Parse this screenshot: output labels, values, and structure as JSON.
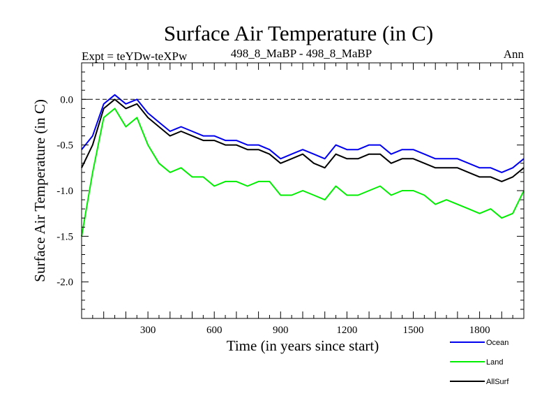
{
  "chart_data": {
    "type": "line",
    "title": "Surface Air Temperature (in C)",
    "subtitle_left": "Expt = teYDw-teXPw",
    "subtitle_center": "498_8_MaBP - 498_8_MaBP",
    "subtitle_right": "Ann",
    "xlabel": "Time (in years since start)",
    "ylabel": "Surface Air Temperature (in C)",
    "xlim": [
      0,
      2000
    ],
    "ylim": [
      -2.4,
      0.4
    ],
    "x_ticks": [
      300,
      600,
      900,
      1200,
      1500,
      1800
    ],
    "x_tick_labels": [
      "300",
      "600",
      "900",
      "1200",
      "1500",
      "1800"
    ],
    "y_ticks": [
      0.0,
      -0.5,
      -1.0,
      -1.5,
      -2.0
    ],
    "y_tick_labels": [
      "0.0",
      "-0.5",
      "-1.0",
      "-1.5",
      "-2.0"
    ],
    "zero_line": "dashed",
    "legend_position": "bottom-right, below plot",
    "series": [
      {
        "name": "Land",
        "color": "#00ee00",
        "x": [
          0,
          50,
          100,
          150,
          200,
          250,
          300,
          350,
          400,
          450,
          500,
          550,
          600,
          650,
          700,
          750,
          800,
          850,
          900,
          950,
          1000,
          1050,
          1100,
          1150,
          1200,
          1250,
          1300,
          1350,
          1400,
          1450,
          1500,
          1550,
          1600,
          1650,
          1700,
          1750,
          1800,
          1850,
          1900,
          1950,
          2000
        ],
        "values": [
          -1.5,
          -0.8,
          -0.2,
          -0.1,
          -0.3,
          -0.2,
          -0.5,
          -0.7,
          -0.8,
          -0.75,
          -0.85,
          -0.85,
          -0.95,
          -0.9,
          -0.9,
          -0.95,
          -0.9,
          -0.9,
          -1.05,
          -1.05,
          -1.0,
          -1.05,
          -1.1,
          -0.95,
          -1.05,
          -1.05,
          -1.0,
          -0.95,
          -1.05,
          -1.0,
          -1.0,
          -1.05,
          -1.15,
          -1.1,
          -1.15,
          -1.2,
          -1.25,
          -1.2,
          -1.3,
          -1.25,
          -1.0
        ]
      },
      {
        "name": "AllSurf",
        "color": "#000000",
        "x": [
          0,
          50,
          100,
          150,
          200,
          250,
          300,
          350,
          400,
          450,
          500,
          550,
          600,
          650,
          700,
          750,
          800,
          850,
          900,
          950,
          1000,
          1050,
          1100,
          1150,
          1200,
          1250,
          1300,
          1350,
          1400,
          1450,
          1500,
          1550,
          1600,
          1650,
          1700,
          1750,
          1800,
          1850,
          1900,
          1950,
          2000
        ],
        "values": [
          -0.75,
          -0.5,
          -0.1,
          0.0,
          -0.1,
          -0.05,
          -0.2,
          -0.3,
          -0.4,
          -0.35,
          -0.4,
          -0.45,
          -0.45,
          -0.5,
          -0.5,
          -0.55,
          -0.55,
          -0.6,
          -0.7,
          -0.65,
          -0.6,
          -0.7,
          -0.75,
          -0.6,
          -0.65,
          -0.65,
          -0.6,
          -0.6,
          -0.7,
          -0.65,
          -0.65,
          -0.7,
          -0.75,
          -0.75,
          -0.75,
          -0.8,
          -0.85,
          -0.85,
          -0.9,
          -0.85,
          -0.75
        ]
      },
      {
        "name": "Ocean",
        "color": "#0000ee",
        "x": [
          0,
          50,
          100,
          150,
          200,
          250,
          300,
          350,
          400,
          450,
          500,
          550,
          600,
          650,
          700,
          750,
          800,
          850,
          900,
          950,
          1000,
          1050,
          1100,
          1150,
          1200,
          1250,
          1300,
          1350,
          1400,
          1450,
          1500,
          1550,
          1600,
          1650,
          1700,
          1750,
          1800,
          1850,
          1900,
          1950,
          2000
        ],
        "values": [
          -0.55,
          -0.4,
          -0.05,
          0.05,
          -0.05,
          0.0,
          -0.15,
          -0.25,
          -0.35,
          -0.3,
          -0.35,
          -0.4,
          -0.4,
          -0.45,
          -0.45,
          -0.5,
          -0.5,
          -0.55,
          -0.65,
          -0.6,
          -0.55,
          -0.6,
          -0.65,
          -0.5,
          -0.55,
          -0.55,
          -0.5,
          -0.5,
          -0.6,
          -0.55,
          -0.55,
          -0.6,
          -0.65,
          -0.65,
          -0.65,
          -0.7,
          -0.75,
          -0.75,
          -0.8,
          -0.75,
          -0.65
        ]
      }
    ],
    "legend": [
      {
        "label": "Ocean",
        "color": "#0000ee"
      },
      {
        "label": "Land",
        "color": "#00ee00"
      },
      {
        "label": "AllSurf",
        "color": "#000000"
      }
    ]
  }
}
